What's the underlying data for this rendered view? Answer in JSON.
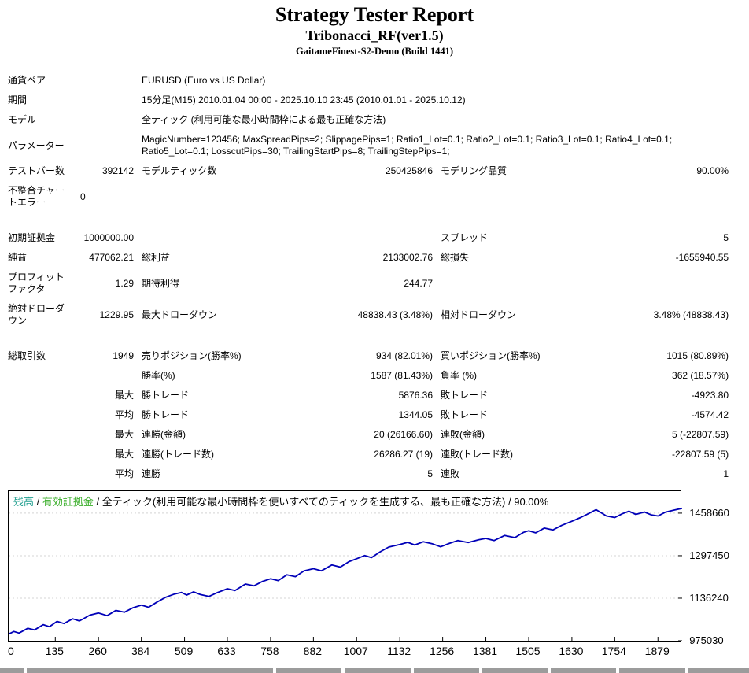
{
  "header": {
    "title": "Strategy Tester Report",
    "ea_name": "Tribonacci_RF(ver1.5)",
    "server": "GaitameFinest-S2-Demo (Build 1441)"
  },
  "report": {
    "rows": [
      {
        "cells": [
          {
            "t": "通貨ペア",
            "s": 2
          },
          {
            "t": "EURUSD (Euro vs US Dollar)",
            "s": 4,
            "a": "l"
          }
        ]
      },
      {
        "cells": [
          {
            "t": "期間",
            "s": 2
          },
          {
            "t": "15分足(M15) 2010.01.04 00:00 - 2025.10.10 23:45 (2010.01.01 - 2025.10.12)",
            "s": 4,
            "a": "l"
          }
        ]
      },
      {
        "cells": [
          {
            "t": "モデル",
            "s": 2
          },
          {
            "t": "全ティック (利用可能な最小時間枠による最も正確な方法)",
            "s": 4,
            "a": "l"
          }
        ]
      },
      {
        "cells": [
          {
            "t": "パラメーター",
            "s": 2
          },
          {
            "t": "MagicNumber=123456; MaxSpreadPips=2; SlippagePips=1; Ratio1_Lot=0.1; Ratio2_Lot=0.1; Ratio3_Lot=0.1; Ratio4_Lot=0.1; Ratio5_Lot=0.1; LosscutPips=30; TrailingStartPips=8; TrailingStepPips=1;",
            "s": 4,
            "a": "l"
          }
        ]
      },
      {
        "cells": [
          {
            "t": "テストバー数"
          },
          {
            "t": "392142",
            "a": "r"
          },
          {
            "t": "モデルティック数"
          },
          {
            "t": "250425846",
            "a": "r"
          },
          {
            "t": "モデリング品質"
          },
          {
            "t": "90.00%",
            "a": "r"
          }
        ]
      },
      {
        "cells": [
          {
            "t": "不整合チャートエラー"
          },
          {
            "t": "0",
            "a": "l"
          },
          {
            "t": "",
            "s": 4
          }
        ]
      },
      {
        "gap": true
      },
      {
        "cells": [
          {
            "t": "初期証拠金"
          },
          {
            "t": "1000000.00",
            "a": "r"
          },
          {
            "t": ""
          },
          {
            "t": ""
          },
          {
            "t": "スプレッド"
          },
          {
            "t": "5",
            "a": "r"
          }
        ]
      },
      {
        "cells": [
          {
            "t": "純益"
          },
          {
            "t": "477062.21",
            "a": "r"
          },
          {
            "t": "総利益"
          },
          {
            "t": "2133002.76",
            "a": "r"
          },
          {
            "t": "総損失"
          },
          {
            "t": "-1655940.55",
            "a": "r"
          }
        ]
      },
      {
        "cells": [
          {
            "t": "プロフィットファクタ"
          },
          {
            "t": "1.29",
            "a": "r"
          },
          {
            "t": "期待利得"
          },
          {
            "t": "244.77",
            "a": "r"
          },
          {
            "t": ""
          },
          {
            "t": ""
          }
        ]
      },
      {
        "cells": [
          {
            "t": "絶対ドローダウン"
          },
          {
            "t": "1229.95",
            "a": "r"
          },
          {
            "t": "最大ドローダウン"
          },
          {
            "t": "48838.43 (3.48%)",
            "a": "r"
          },
          {
            "t": "相対ドローダウン"
          },
          {
            "t": "3.48% (48838.43)",
            "a": "r"
          }
        ]
      },
      {
        "gap": true
      },
      {
        "cells": [
          {
            "t": "総取引数"
          },
          {
            "t": "1949",
            "a": "r"
          },
          {
            "t": "売りポジション(勝率%)"
          },
          {
            "t": "934 (82.01%)",
            "a": "r"
          },
          {
            "t": "買いポジション(勝率%)"
          },
          {
            "t": "1015 (80.89%)",
            "a": "r"
          }
        ]
      },
      {
        "cells": [
          {
            "t": ""
          },
          {
            "t": ""
          },
          {
            "t": "勝率(%)"
          },
          {
            "t": "1587 (81.43%)",
            "a": "r"
          },
          {
            "t": "負率 (%)"
          },
          {
            "t": "362 (18.57%)",
            "a": "r"
          }
        ]
      },
      {
        "cells": [
          {
            "t": ""
          },
          {
            "t": "最大",
            "a": "r"
          },
          {
            "t": "勝トレード"
          },
          {
            "t": "5876.36",
            "a": "r"
          },
          {
            "t": "敗トレード"
          },
          {
            "t": "-4923.80",
            "a": "r"
          }
        ]
      },
      {
        "cells": [
          {
            "t": ""
          },
          {
            "t": "平均",
            "a": "r"
          },
          {
            "t": "勝トレード"
          },
          {
            "t": "1344.05",
            "a": "r"
          },
          {
            "t": "敗トレード"
          },
          {
            "t": "-4574.42",
            "a": "r"
          }
        ]
      },
      {
        "cells": [
          {
            "t": ""
          },
          {
            "t": "最大",
            "a": "r"
          },
          {
            "t": "連勝(金額)"
          },
          {
            "t": "20 (26166.60)",
            "a": "r"
          },
          {
            "t": "連敗(金額)"
          },
          {
            "t": "5 (-22807.59)",
            "a": "r"
          }
        ]
      },
      {
        "cells": [
          {
            "t": ""
          },
          {
            "t": "最大",
            "a": "r"
          },
          {
            "t": "連勝(トレード数)"
          },
          {
            "t": "26286.27 (19)",
            "a": "r"
          },
          {
            "t": "連敗(トレード数)"
          },
          {
            "t": "-22807.59 (5)",
            "a": "r"
          }
        ]
      },
      {
        "cells": [
          {
            "t": ""
          },
          {
            "t": "平均",
            "a": "r"
          },
          {
            "t": "連勝"
          },
          {
            "t": "5",
            "a": "r"
          },
          {
            "t": "連敗"
          },
          {
            "t": "1",
            "a": "r"
          }
        ]
      }
    ]
  },
  "chart": {
    "legend": {
      "balance": "残高",
      "sep1": " / ",
      "equity": "有効証拠金",
      "rest": " / 全ティック(利用可能な最小時間枠を使いすべてのティックを生成する、最も正確な方法) / 90.00%"
    },
    "colors": {
      "balance_label": "#1f9e8e",
      "equity_label": "#3aae2a",
      "line": "#0000b8",
      "grid": "#d4d4d4",
      "strip": "#9c9c9c"
    }
  },
  "chart_data": {
    "type": "line",
    "title": "残高 / 有効証拠金",
    "x_ticks": [
      0,
      135,
      260,
      384,
      509,
      633,
      758,
      882,
      1007,
      1132,
      1256,
      1381,
      1505,
      1630,
      1754,
      1879
    ],
    "y_ticks": [
      1458660,
      1297450,
      1136240,
      975030
    ],
    "xlim": [
      0,
      1949
    ],
    "ylim": [
      975030,
      1542000
    ],
    "grid": "horizontal-dotted",
    "legend_position": "top-left-inside",
    "series": [
      {
        "name": "残高",
        "color": "#0000b8",
        "points": [
          [
            0,
            1000000
          ],
          [
            15,
            1010000
          ],
          [
            30,
            1004000
          ],
          [
            55,
            1022000
          ],
          [
            75,
            1016000
          ],
          [
            100,
            1036000
          ],
          [
            118,
            1028000
          ],
          [
            140,
            1048000
          ],
          [
            160,
            1040000
          ],
          [
            185,
            1058000
          ],
          [
            205,
            1050000
          ],
          [
            235,
            1072000
          ],
          [
            260,
            1080000
          ],
          [
            285,
            1070000
          ],
          [
            310,
            1090000
          ],
          [
            335,
            1083000
          ],
          [
            360,
            1100000
          ],
          [
            384,
            1110000
          ],
          [
            405,
            1102000
          ],
          [
            430,
            1122000
          ],
          [
            455,
            1140000
          ],
          [
            480,
            1152000
          ],
          [
            500,
            1158000
          ],
          [
            515,
            1148000
          ],
          [
            535,
            1160000
          ],
          [
            555,
            1150000
          ],
          [
            580,
            1143000
          ],
          [
            605,
            1158000
          ],
          [
            633,
            1172000
          ],
          [
            655,
            1165000
          ],
          [
            685,
            1190000
          ],
          [
            710,
            1183000
          ],
          [
            735,
            1200000
          ],
          [
            758,
            1210000
          ],
          [
            780,
            1203000
          ],
          [
            805,
            1225000
          ],
          [
            830,
            1218000
          ],
          [
            855,
            1240000
          ],
          [
            882,
            1248000
          ],
          [
            905,
            1240000
          ],
          [
            935,
            1262000
          ],
          [
            960,
            1254000
          ],
          [
            985,
            1275000
          ],
          [
            1007,
            1286000
          ],
          [
            1030,
            1298000
          ],
          [
            1050,
            1290000
          ],
          [
            1075,
            1312000
          ],
          [
            1100,
            1330000
          ],
          [
            1132,
            1340000
          ],
          [
            1155,
            1348000
          ],
          [
            1175,
            1338000
          ],
          [
            1200,
            1350000
          ],
          [
            1225,
            1343000
          ],
          [
            1250,
            1331000
          ],
          [
            1275,
            1344000
          ],
          [
            1300,
            1355000
          ],
          [
            1330,
            1347000
          ],
          [
            1360,
            1358000
          ],
          [
            1381,
            1363000
          ],
          [
            1405,
            1355000
          ],
          [
            1435,
            1374000
          ],
          [
            1465,
            1366000
          ],
          [
            1490,
            1386000
          ],
          [
            1505,
            1392000
          ],
          [
            1525,
            1384000
          ],
          [
            1550,
            1402000
          ],
          [
            1575,
            1395000
          ],
          [
            1600,
            1412000
          ],
          [
            1630,
            1428000
          ],
          [
            1655,
            1442000
          ],
          [
            1680,
            1458000
          ],
          [
            1700,
            1472000
          ],
          [
            1715,
            1460000
          ],
          [
            1730,
            1448000
          ],
          [
            1754,
            1442000
          ],
          [
            1775,
            1456000
          ],
          [
            1795,
            1466000
          ],
          [
            1815,
            1454000
          ],
          [
            1840,
            1463000
          ],
          [
            1860,
            1452000
          ],
          [
            1879,
            1448000
          ],
          [
            1900,
            1462000
          ],
          [
            1925,
            1470000
          ],
          [
            1949,
            1477062
          ]
        ]
      }
    ]
  },
  "partial_table_strip": {
    "segments": [
      30,
      316,
      84,
      84,
      84,
      84,
      84,
      84,
      78
    ]
  }
}
